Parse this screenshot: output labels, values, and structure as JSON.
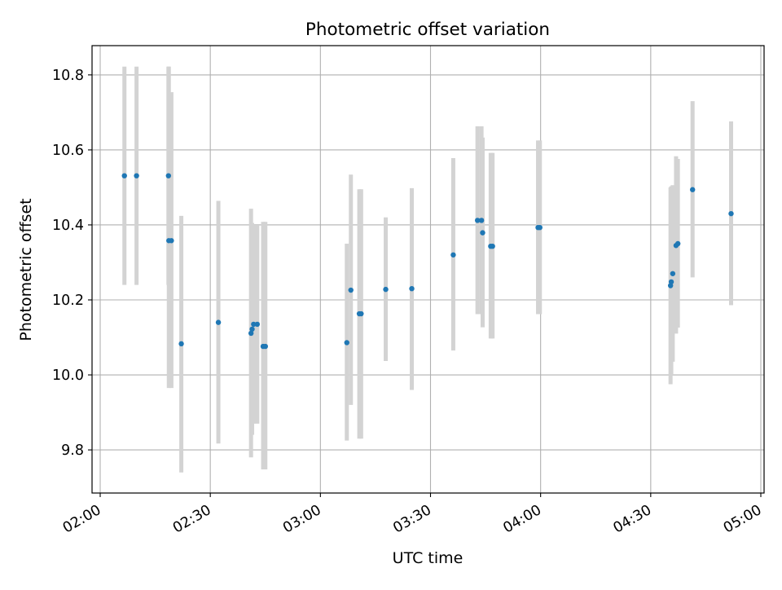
{
  "chart_data": {
    "type": "scatter",
    "title": "Photometric offset variation",
    "xlabel": "UTC time",
    "ylabel": "Photometric offset",
    "x_ticks": [
      "02:00",
      "02:30",
      "03:00",
      "03:30",
      "04:00",
      "04:30",
      "05:00"
    ],
    "y_ticks": [
      "9.8",
      "10.0",
      "10.2",
      "10.4",
      "10.6",
      "10.8"
    ],
    "xlim": [
      "01:58",
      "05:00"
    ],
    "ylim": [
      9.685,
      10.878
    ],
    "grid": true,
    "marker_color": "#1f77b4",
    "errorbar_color": "#d3d3d3",
    "points": [
      {
        "t": "02:06:36",
        "y": 10.531,
        "lo": 10.24,
        "hi": 10.822
      },
      {
        "t": "02:09:54",
        "y": 10.531,
        "lo": 10.24,
        "hi": 10.822
      },
      {
        "t": "02:18:36",
        "y": 10.531,
        "lo": 10.24,
        "hi": 10.822
      },
      {
        "t": "02:18:42",
        "y": 10.358,
        "lo": 9.965,
        "hi": 10.822
      },
      {
        "t": "02:19:24",
        "y": 10.358,
        "lo": 9.965,
        "hi": 10.754
      },
      {
        "t": "02:22:06",
        "y": 10.083,
        "lo": 9.74,
        "hi": 10.424
      },
      {
        "t": "02:32:12",
        "y": 10.14,
        "lo": 9.817,
        "hi": 10.464
      },
      {
        "t": "02:41:06",
        "y": 10.111,
        "lo": 9.78,
        "hi": 10.443
      },
      {
        "t": "02:41:24",
        "y": 10.122,
        "lo": 9.84,
        "hi": 10.405
      },
      {
        "t": "02:41:48",
        "y": 10.135,
        "lo": 9.87,
        "hi": 10.4
      },
      {
        "t": "02:42:48",
        "y": 10.135,
        "lo": 9.87,
        "hi": 10.4
      },
      {
        "t": "02:44:24",
        "y": 10.076,
        "lo": 9.748,
        "hi": 10.408
      },
      {
        "t": "02:45:00",
        "y": 10.076,
        "lo": 9.748,
        "hi": 10.408
      },
      {
        "t": "03:07:12",
        "y": 10.086,
        "lo": 9.825,
        "hi": 10.35
      },
      {
        "t": "03:08:18",
        "y": 10.226,
        "lo": 9.92,
        "hi": 10.534
      },
      {
        "t": "03:10:36",
        "y": 10.163,
        "lo": 9.83,
        "hi": 10.495
      },
      {
        "t": "03:11:06",
        "y": 10.163,
        "lo": 9.83,
        "hi": 10.495
      },
      {
        "t": "03:17:48",
        "y": 10.228,
        "lo": 10.037,
        "hi": 10.42
      },
      {
        "t": "03:24:54",
        "y": 10.23,
        "lo": 9.96,
        "hi": 10.498
      },
      {
        "t": "03:36:12",
        "y": 10.32,
        "lo": 10.065,
        "hi": 10.578
      },
      {
        "t": "03:42:48",
        "y": 10.412,
        "lo": 10.162,
        "hi": 10.663
      },
      {
        "t": "03:43:54",
        "y": 10.412,
        "lo": 10.162,
        "hi": 10.663
      },
      {
        "t": "03:44:12",
        "y": 10.379,
        "lo": 10.127,
        "hi": 10.633
      },
      {
        "t": "03:46:24",
        "y": 10.343,
        "lo": 10.097,
        "hi": 10.592
      },
      {
        "t": "03:46:54",
        "y": 10.343,
        "lo": 10.097,
        "hi": 10.592
      },
      {
        "t": "03:59:18",
        "y": 10.393,
        "lo": 10.162,
        "hi": 10.625
      },
      {
        "t": "03:59:48",
        "y": 10.393,
        "lo": 10.162,
        "hi": 10.625
      },
      {
        "t": "04:35:24",
        "y": 10.238,
        "lo": 9.975,
        "hi": 10.5
      },
      {
        "t": "04:35:36",
        "y": 10.248,
        "lo": 10.0,
        "hi": 10.503
      },
      {
        "t": "04:36:00",
        "y": 10.27,
        "lo": 10.035,
        "hi": 10.506
      },
      {
        "t": "04:36:54",
        "y": 10.345,
        "lo": 10.11,
        "hi": 10.583
      },
      {
        "t": "04:37:24",
        "y": 10.35,
        "lo": 10.126,
        "hi": 10.576
      },
      {
        "t": "04:41:24",
        "y": 10.494,
        "lo": 10.26,
        "hi": 10.73
      },
      {
        "t": "04:51:54",
        "y": 10.43,
        "lo": 10.186,
        "hi": 10.676
      }
    ]
  }
}
